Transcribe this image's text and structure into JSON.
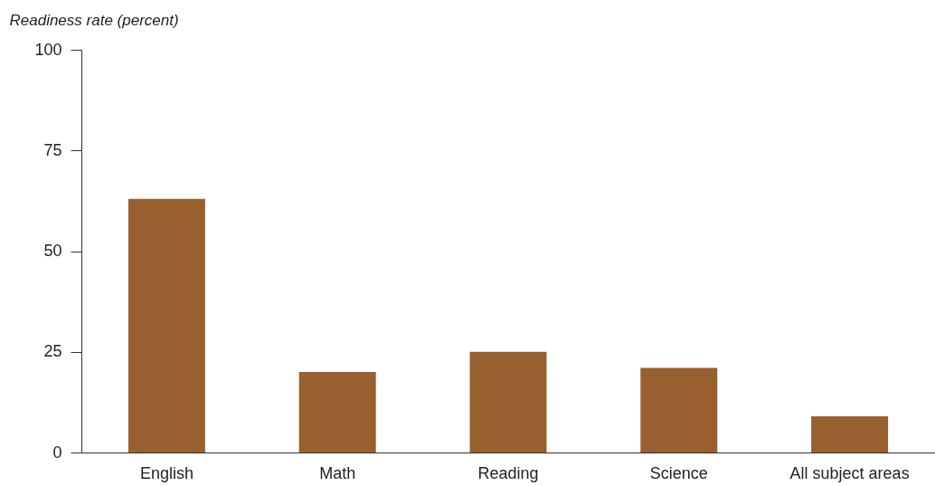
{
  "chart_data": {
    "type": "bar",
    "ylabel": "Readiness rate (percent)",
    "categories": [
      "English",
      "Math",
      "Reading",
      "Science",
      "All subject areas"
    ],
    "values": [
      63,
      20,
      25,
      21,
      9
    ],
    "color": "#98602f",
    "ylim": [
      0,
      100
    ],
    "yticks": [
      0,
      25,
      50,
      75,
      100
    ],
    "grid": false
  }
}
